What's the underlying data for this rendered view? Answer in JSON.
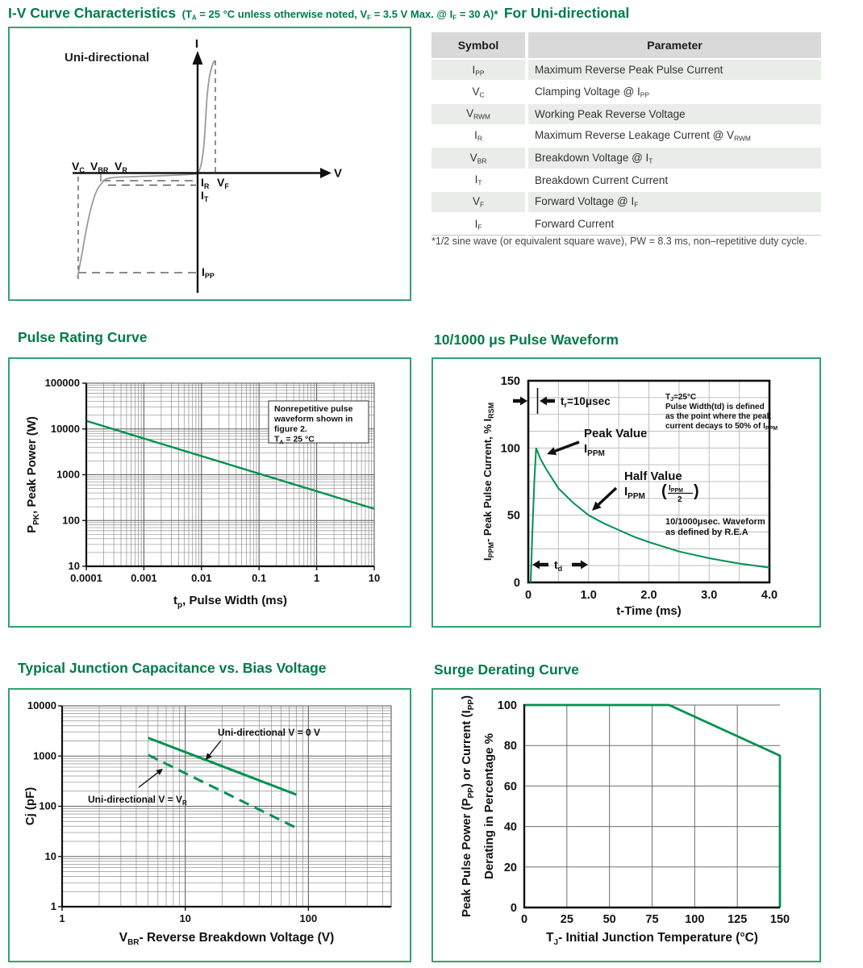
{
  "page_title": {
    "main": "I-V Curve Characteristics",
    "note_parts": [
      {
        "t": "(T"
      },
      {
        "s": "A"
      },
      {
        "t": " = 25 °C unless otherwise noted, V"
      },
      {
        "s": "F"
      },
      {
        "t": " = 3.5 V Max. @ I"
      },
      {
        "s": "F"
      },
      {
        "t": " = 30 A)*"
      }
    ],
    "suffix": "For Uni-directional"
  },
  "iv_diagram": {
    "corner_label": "Uni-directional",
    "i_axis_label": "I",
    "v_axis_label": "V",
    "vc": [
      {
        "t": "V"
      },
      {
        "s": "C"
      }
    ],
    "vbr": [
      {
        "t": "V"
      },
      {
        "s": "BR"
      }
    ],
    "vr": [
      {
        "t": "V"
      },
      {
        "s": "R"
      }
    ],
    "ir": [
      {
        "t": "I"
      },
      {
        "s": "R"
      }
    ],
    "vf": [
      {
        "t": "V"
      },
      {
        "s": "F"
      }
    ],
    "it": [
      {
        "t": "I"
      },
      {
        "s": "T"
      }
    ],
    "ipp": [
      {
        "t": "I"
      },
      {
        "s": "PP"
      }
    ]
  },
  "table": {
    "headers": [
      "Symbol",
      "Parameter"
    ],
    "rows": [
      {
        "symbol": [
          {
            "t": "I"
          },
          {
            "s": "PP"
          }
        ],
        "parameter": [
          {
            "t": "Maximum Reverse Peak Pulse Current"
          }
        ]
      },
      {
        "symbol": [
          {
            "t": "V"
          },
          {
            "s": "C"
          }
        ],
        "parameter": [
          {
            "t": "Clamping Voltage @ I"
          },
          {
            "s": "PP"
          }
        ]
      },
      {
        "symbol": [
          {
            "t": "V"
          },
          {
            "s": "RWM"
          }
        ],
        "parameter": [
          {
            "t": "Working Peak Reverse Voltage"
          }
        ]
      },
      {
        "symbol": [
          {
            "t": "I"
          },
          {
            "s": "R"
          }
        ],
        "parameter": [
          {
            "t": "Maximum Reverse Leakage Current @ V"
          },
          {
            "s": "RWM"
          }
        ]
      },
      {
        "symbol": [
          {
            "t": "V"
          },
          {
            "s": "BR"
          }
        ],
        "parameter": [
          {
            "t": "Breakdown Voltage @ I"
          },
          {
            "s": "T"
          }
        ]
      },
      {
        "symbol": [
          {
            "t": "I"
          },
          {
            "s": "T"
          }
        ],
        "parameter": [
          {
            "t": "Breakdown Current Current"
          }
        ]
      },
      {
        "symbol": [
          {
            "t": "V"
          },
          {
            "s": "F"
          }
        ],
        "parameter": [
          {
            "t": "Forward Voltage @ I"
          },
          {
            "s": "F"
          }
        ]
      },
      {
        "symbol": [
          {
            "t": "I"
          },
          {
            "s": "F"
          }
        ],
        "parameter": [
          {
            "t": "Forward Current"
          }
        ]
      }
    ],
    "footnote": "*1/2 sine wave (or equivalent square wave), PW = 8.3 ms, non–repetitive duty cycle."
  },
  "sections": {
    "pulse": "Pulse Rating Curve",
    "waveform": "10/1000 μs Pulse Waveform",
    "cj": "Typical Junction Capacitance vs. Bias Voltage",
    "surge": "Surge Derating Curve"
  },
  "colors": {
    "heading_green": "#007B49",
    "curve_green": "#009150",
    "border_green": "#2FA46F",
    "grid_minor": "#8F8F8F",
    "grid_major": "#5F5F5F",
    "grid_light": "#BFBFBF",
    "grid_surge": "#6E6E6E",
    "diagram_gray": "#9A9A9A",
    "ink": "#111111"
  },
  "chart_data": [
    {
      "id": "pulse_rating",
      "type": "line",
      "title": "Pulse Rating Curve",
      "x_scale": "log",
      "y_scale": "log",
      "xlim": [
        0.0001,
        10
      ],
      "ylim": [
        10,
        100000
      ],
      "grid": "on",
      "x_ticks": [
        {
          "v": 0.0001,
          "l": "0.0001"
        },
        {
          "v": 0.001,
          "l": "0.001"
        },
        {
          "v": 0.01,
          "l": "0.01"
        },
        {
          "v": 0.1,
          "l": "0.1"
        },
        {
          "v": 1,
          "l": "1"
        },
        {
          "v": 10,
          "l": "10"
        }
      ],
      "y_ticks": [
        {
          "v": 10,
          "l": "10"
        },
        {
          "v": 100,
          "l": "100"
        },
        {
          "v": 1000,
          "l": "1000"
        },
        {
          "v": 10000,
          "l": "10000"
        },
        {
          "v": 100000,
          "l": "100000"
        }
      ],
      "xlabel_parts": [
        {
          "t": "t"
        },
        {
          "s": "p"
        },
        {
          "t": ", Pulse Width (ms)"
        }
      ],
      "ylabel_parts": [
        {
          "t": "P"
        },
        {
          "s": "PK"
        },
        {
          "t": ", Peak Power (W)"
        }
      ],
      "series": [
        {
          "name": "peak-power-vs-pulse-width",
          "style": "solid",
          "points": [
            [
              0.0001,
              15000
            ],
            [
              10,
              180
            ]
          ]
        }
      ],
      "annotation_lines": [
        [
          {
            "t": "Nonrepetitive pulse"
          }
        ],
        [
          {
            "t": "waveform shown in"
          }
        ],
        [
          {
            "t": "figure 2."
          }
        ],
        [
          {
            "t": "T"
          },
          {
            "s": "A"
          },
          {
            "t": " = 25 °C"
          }
        ]
      ]
    },
    {
      "id": "waveform",
      "type": "line",
      "title": "10/1000 μs Pulse Waveform",
      "x_scale": "linear",
      "y_scale": "linear",
      "xlim": [
        0,
        4
      ],
      "ylim": [
        0,
        150
      ],
      "grid": "on",
      "grid_step_x": 0.5,
      "grid_step_y": 12.5,
      "x_ticks": [
        {
          "v": 0,
          "l": "0"
        },
        {
          "v": 1,
          "l": "1.0"
        },
        {
          "v": 2,
          "l": "2.0"
        },
        {
          "v": 3,
          "l": "3.0"
        },
        {
          "v": 4,
          "l": "4.0"
        }
      ],
      "y_ticks": [
        {
          "v": 0,
          "l": "0"
        },
        {
          "v": 50,
          "l": "50"
        },
        {
          "v": 100,
          "l": "100"
        },
        {
          "v": 150,
          "l": "150"
        }
      ],
      "xlabel_parts": [
        {
          "t": "t-Time (ms)"
        }
      ],
      "ylabel_parts": [
        {
          "t": "I"
        },
        {
          "s": "PPM"
        },
        {
          "t": "- Peak Pulse Current, % I"
        },
        {
          "s": "RSM"
        }
      ],
      "series": [
        {
          "name": "pulse-current",
          "style": "solid",
          "points": [
            [
              0.04,
              0
            ],
            [
              0.07,
              40
            ],
            [
              0.1,
              75
            ],
            [
              0.13,
              100
            ],
            [
              0.2,
              92
            ],
            [
              0.3,
              84
            ],
            [
              0.4,
              77
            ],
            [
              0.5,
              70
            ],
            [
              0.75,
              59
            ],
            [
              1,
              50
            ],
            [
              1.25,
              44
            ],
            [
              1.5,
              39
            ],
            [
              1.75,
              34
            ],
            [
              2,
              30
            ],
            [
              2.25,
              26.5
            ],
            [
              2.5,
              23
            ],
            [
              2.75,
              20.5
            ],
            [
              3,
              18
            ],
            [
              3.25,
              16
            ],
            [
              3.5,
              14
            ],
            [
              3.75,
              12.5
            ],
            [
              4,
              11
            ]
          ]
        }
      ],
      "annotations": {
        "tr_label": [
          {
            "t": "t"
          },
          {
            "s": "r"
          },
          {
            "t": "=10μsec"
          }
        ],
        "peak_label_line1": [
          {
            "t": "Peak Value"
          }
        ],
        "peak_label_line2": [
          {
            "t": "I"
          },
          {
            "s": "PPM"
          }
        ],
        "half_label_line1": [
          {
            "t": "Half Value"
          }
        ],
        "half_label_line2": [
          {
            "t": "I"
          },
          {
            "s": "PPM"
          }
        ],
        "half_frac_num": [
          {
            "t": "I"
          },
          {
            "s": "PPM"
          }
        ],
        "half_frac_den": "2",
        "tj_note_lines": [
          [
            {
              "t": "T"
            },
            {
              "s": "J"
            },
            {
              "t": "=25°C"
            }
          ],
          [
            {
              "t": "Pulse Width(td) is defined"
            }
          ],
          [
            {
              "t": "as the point where the peak"
            }
          ],
          [
            {
              "t": "current decays to 50% of I"
            },
            {
              "s": "PPM"
            }
          ]
        ],
        "rea_note_lines": [
          [
            {
              "t": "10/1000μsec. Waveform"
            }
          ],
          [
            {
              "t": "as defined by R.E.A"
            }
          ]
        ],
        "td_label": [
          {
            "t": "t"
          },
          {
            "s": "d"
          }
        ]
      }
    },
    {
      "id": "cj",
      "type": "line",
      "title": "Typical Junction Capacitance vs. Bias Voltage",
      "x_scale": "log",
      "y_scale": "log",
      "xlim": [
        1,
        470
      ],
      "ylim": [
        1,
        10000
      ],
      "grid": "on",
      "x_ticks": [
        {
          "v": 1,
          "l": "1"
        },
        {
          "v": 10,
          "l": "10"
        },
        {
          "v": 100,
          "l": "100"
        }
      ],
      "y_ticks": [
        {
          "v": 1,
          "l": "1"
        },
        {
          "v": 10,
          "l": "10"
        },
        {
          "v": 100,
          "l": "100"
        },
        {
          "v": 1000,
          "l": "1000"
        },
        {
          "v": 10000,
          "l": "10000"
        }
      ],
      "xlabel_parts": [
        {
          "t": "V"
        },
        {
          "s": "BR"
        },
        {
          "t": "- Reverse Breakdown Voltage (V)"
        }
      ],
      "ylabel_parts": [
        {
          "t": "Cj (pF)"
        }
      ],
      "series": [
        {
          "name": "uni-directional-v0",
          "label_parts": [
            {
              "t": "Uni-directional V = 0 V"
            }
          ],
          "style": "solid",
          "points": [
            [
              5,
              2300
            ],
            [
              80,
              170
            ]
          ]
        },
        {
          "name": "uni-directional-vr",
          "label_parts": [
            {
              "t": "Uni-directional V = V"
            },
            {
              "s": "R"
            }
          ],
          "style": "dashed",
          "points": [
            [
              5,
              1050
            ],
            [
              80,
              37
            ]
          ]
        }
      ]
    },
    {
      "id": "surge",
      "type": "line",
      "title": "Surge Derating Curve",
      "x_scale": "linear",
      "y_scale": "linear",
      "xlim": [
        0,
        150
      ],
      "ylim": [
        0,
        100
      ],
      "grid": "on",
      "grid_step_x": 25,
      "grid_step_y": 20,
      "x_ticks": [
        {
          "v": 0,
          "l": "0"
        },
        {
          "v": 25,
          "l": "25"
        },
        {
          "v": 50,
          "l": "50"
        },
        {
          "v": 75,
          "l": "75"
        },
        {
          "v": 100,
          "l": "100"
        },
        {
          "v": 125,
          "l": "125"
        },
        {
          "v": 150,
          "l": "150"
        }
      ],
      "y_ticks": [
        {
          "v": 0,
          "l": "0"
        },
        {
          "v": 20,
          "l": "20"
        },
        {
          "v": 40,
          "l": "40"
        },
        {
          "v": 60,
          "l": "60"
        },
        {
          "v": 80,
          "l": "80"
        },
        {
          "v": 100,
          "l": "100"
        }
      ],
      "xlabel_parts": [
        {
          "t": "T"
        },
        {
          "s": "J"
        },
        {
          "t": "- Initial Junction Temperature (°C)"
        }
      ],
      "ylabel_line1_parts": [
        {
          "t": "Peak Pulse Power (P"
        },
        {
          "s": "PP"
        },
        {
          "t": ") or Current (I"
        },
        {
          "s": "PP"
        },
        {
          "t": ")"
        }
      ],
      "ylabel_line2_parts": [
        {
          "t": "Derating in Percentage %"
        }
      ],
      "series": [
        {
          "name": "derating",
          "style": "solid",
          "points": [
            [
              0,
              100
            ],
            [
              85,
              100
            ],
            [
              150,
              75
            ],
            [
              150,
              0
            ]
          ]
        }
      ]
    }
  ]
}
